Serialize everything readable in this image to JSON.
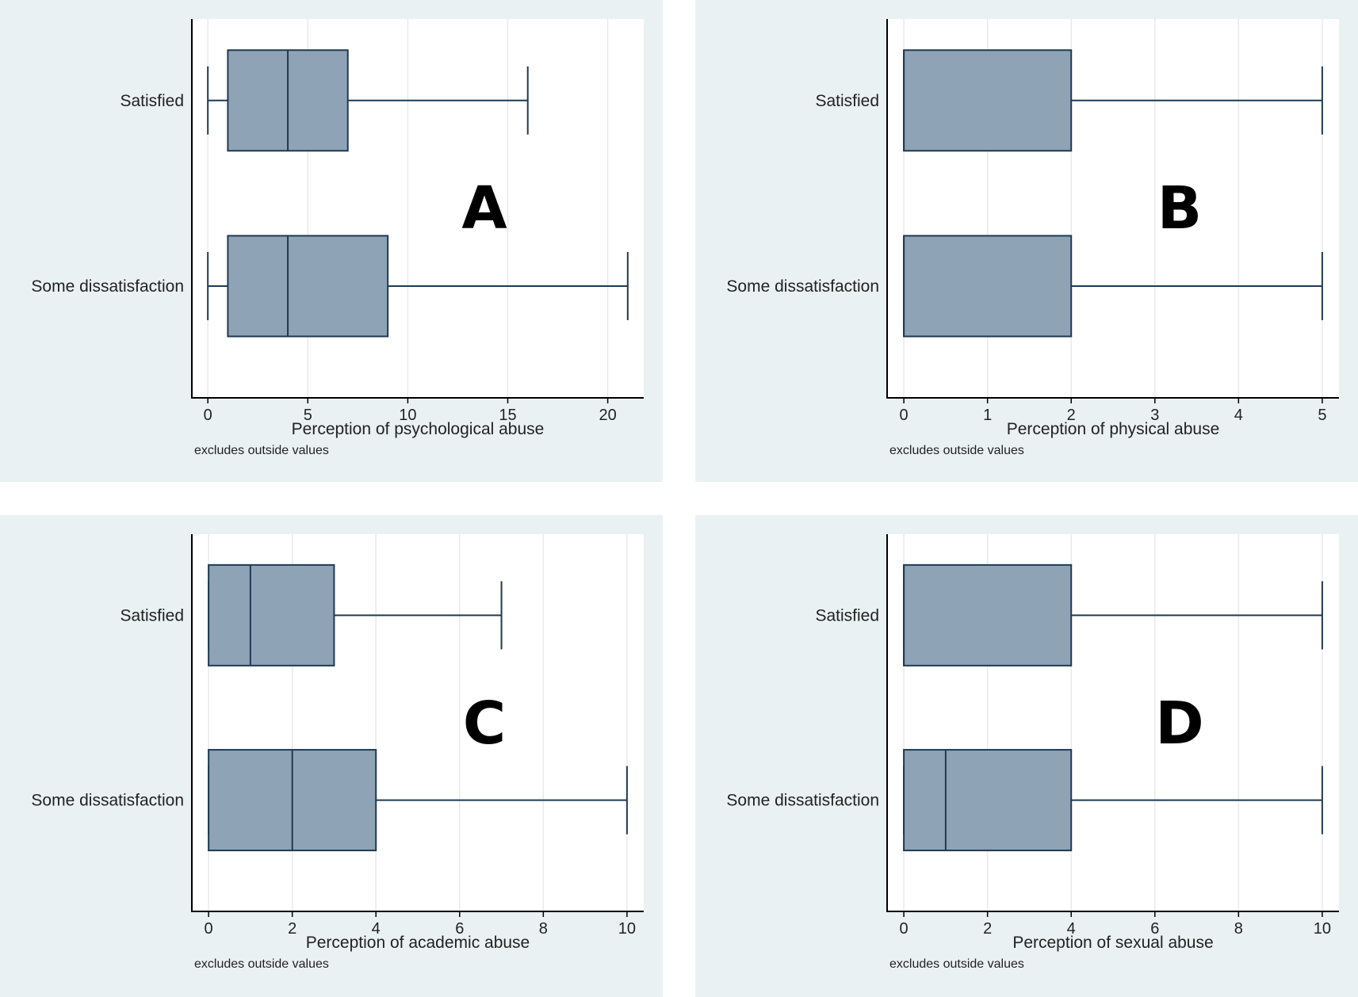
{
  "figure": {
    "note": "excludes outside values",
    "colors": {
      "panel_bg": "#eaf1f3",
      "plot_bg": "#ffffff",
      "box_fill": "#8ea3b6",
      "box_stroke": "#1f3a52",
      "grid": "#e6ebee",
      "axis": "#000000"
    }
  },
  "chart_data": [
    {
      "type": "boxplot",
      "panel_label": "A",
      "xlabel": "Perception of psychological abuse",
      "note": "excludes outside values",
      "xlim": [
        -0.8,
        21.8
      ],
      "xticks": [
        0,
        5,
        10,
        15,
        20
      ],
      "categories": [
        "Satisfied",
        "Some dissatisfaction"
      ],
      "boxes": [
        {
          "name": "Satisfied",
          "min": 0,
          "q1": 1,
          "median": 4,
          "q3": 7,
          "max": 16
        },
        {
          "name": "Some dissatisfaction",
          "min": 0,
          "q1": 1,
          "median": 4,
          "q3": 9,
          "max": 21
        }
      ]
    },
    {
      "type": "boxplot",
      "panel_label": "B",
      "xlabel": "Perception of physical abuse",
      "note": "excludes outside values",
      "xlim": [
        -0.2,
        5.2
      ],
      "xticks": [
        0,
        1,
        2,
        3,
        4,
        5
      ],
      "categories": [
        "Satisfied",
        "Some dissatisfaction"
      ],
      "boxes": [
        {
          "name": "Satisfied",
          "min": 0,
          "q1": 0,
          "median": 0,
          "q3": 2,
          "max": 5
        },
        {
          "name": "Some dissatisfaction",
          "min": 0,
          "q1": 0,
          "median": 0,
          "q3": 2,
          "max": 5
        }
      ]
    },
    {
      "type": "boxplot",
      "panel_label": "C",
      "xlabel": "Perception of academic abuse",
      "note": "excludes outside values",
      "xlim": [
        -0.4,
        10.4
      ],
      "xticks": [
        0,
        2,
        4,
        6,
        8,
        10
      ],
      "categories": [
        "Satisfied",
        "Some dissatisfaction"
      ],
      "boxes": [
        {
          "name": "Satisfied",
          "min": 0,
          "q1": 0,
          "median": 1,
          "q3": 3,
          "max": 7
        },
        {
          "name": "Some dissatisfaction",
          "min": 0,
          "q1": 0,
          "median": 2,
          "q3": 4,
          "max": 10
        }
      ]
    },
    {
      "type": "boxplot",
      "panel_label": "D",
      "xlabel": "Perception of sexual abuse",
      "note": "excludes outside values",
      "xlim": [
        -0.4,
        10.4
      ],
      "xticks": [
        0,
        2,
        4,
        6,
        8,
        10
      ],
      "categories": [
        "Satisfied",
        "Some dissatisfaction"
      ],
      "boxes": [
        {
          "name": "Satisfied",
          "min": 0,
          "q1": 0,
          "median": 0,
          "q3": 4,
          "max": 10
        },
        {
          "name": "Some dissatisfaction",
          "min": 0,
          "q1": 0,
          "median": 1,
          "q3": 4,
          "max": 10
        }
      ]
    }
  ]
}
